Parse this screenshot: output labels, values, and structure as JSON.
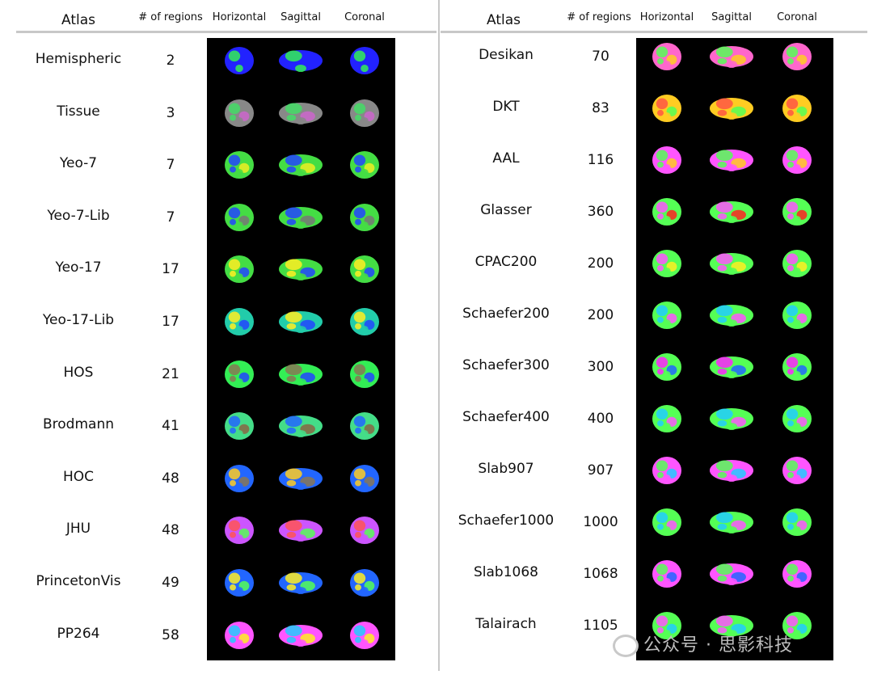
{
  "headers": {
    "atlas": "Atlas",
    "regions": "# of regions",
    "horizontal": "Horizontal",
    "sagittal": "Sagittal",
    "coronal": "Coronal"
  },
  "left_rows": [
    {
      "name": "Hemispheric",
      "count": "2",
      "colors": [
        "#2222ff",
        "#33ee55"
      ]
    },
    {
      "name": "Tissue",
      "count": "3",
      "colors": [
        "#888888",
        "#44dd66",
        "#cc66cc"
      ]
    },
    {
      "name": "Yeo-7",
      "count": "7",
      "colors": [
        "#44dd44",
        "#2244ff",
        "#eeee22"
      ]
    },
    {
      "name": "Yeo-7-Lib",
      "count": "7",
      "colors": [
        "#44dd44",
        "#2244ff",
        "#777777"
      ]
    },
    {
      "name": "Yeo-17",
      "count": "17",
      "colors": [
        "#44dd44",
        "#ffee22",
        "#2244ff"
      ]
    },
    {
      "name": "Yeo-17-Lib",
      "count": "17",
      "colors": [
        "#22ccaa",
        "#ffee22",
        "#2244ff"
      ]
    },
    {
      "name": "HOS",
      "count": "21",
      "colors": [
        "#33ee55",
        "#887755",
        "#2244ff"
      ]
    },
    {
      "name": "Brodmann",
      "count": "41",
      "colors": [
        "#44dd88",
        "#2266ff",
        "#886644"
      ]
    },
    {
      "name": "HOC",
      "count": "48",
      "colors": [
        "#2266ff",
        "#ffcc22",
        "#887755"
      ]
    },
    {
      "name": "JHU",
      "count": "48",
      "colors": [
        "#cc55ff",
        "#ff5555",
        "#55ff55"
      ]
    },
    {
      "name": "PrincetonVis",
      "count": "49",
      "colors": [
        "#2266ff",
        "#ffee22",
        "#55ff55"
      ]
    },
    {
      "name": "PP264",
      "count": "58",
      "colors": [
        "#ff55ff",
        "#22ccff",
        "#ffee22"
      ]
    }
  ],
  "right_rows": [
    {
      "name": "Desikan",
      "count": "70",
      "colors": [
        "#ff66cc",
        "#55ff55",
        "#ffcc22"
      ]
    },
    {
      "name": "DKT",
      "count": "83",
      "colors": [
        "#ffcc22",
        "#ff5544",
        "#55ff55"
      ]
    },
    {
      "name": "AAL",
      "count": "116",
      "colors": [
        "#ff55ff",
        "#55ff55",
        "#ffcc22"
      ]
    },
    {
      "name": "Glasser",
      "count": "360",
      "colors": [
        "#55ff55",
        "#ff55ff",
        "#ff2222"
      ]
    },
    {
      "name": "CPAC200",
      "count": "200",
      "colors": [
        "#55ff55",
        "#ff55ff",
        "#ffee22"
      ]
    },
    {
      "name": "Schaefer200",
      "count": "200",
      "colors": [
        "#55ff55",
        "#22ccff",
        "#ff55ff"
      ]
    },
    {
      "name": "Schaefer300",
      "count": "300",
      "colors": [
        "#55ff55",
        "#ff22ff",
        "#2266ff"
      ]
    },
    {
      "name": "Schaefer400",
      "count": "400",
      "colors": [
        "#55ff55",
        "#22ccff",
        "#ff55ff"
      ]
    },
    {
      "name": "Slab907",
      "count": "907",
      "colors": [
        "#ff55ff",
        "#55ff55",
        "#22ccff"
      ]
    },
    {
      "name": "Schaefer1000",
      "count": "1000",
      "colors": [
        "#55ff55",
        "#22ccff",
        "#ff55ff"
      ]
    },
    {
      "name": "Slab1068",
      "count": "1068",
      "colors": [
        "#ff55ff",
        "#55ff55",
        "#2266ff"
      ]
    },
    {
      "name": "Talairach",
      "count": "1105",
      "colors": [
        "#55ff55",
        "#ff55ff",
        "#22ccff"
      ]
    }
  ],
  "watermark": "公众号 · 思影科技"
}
